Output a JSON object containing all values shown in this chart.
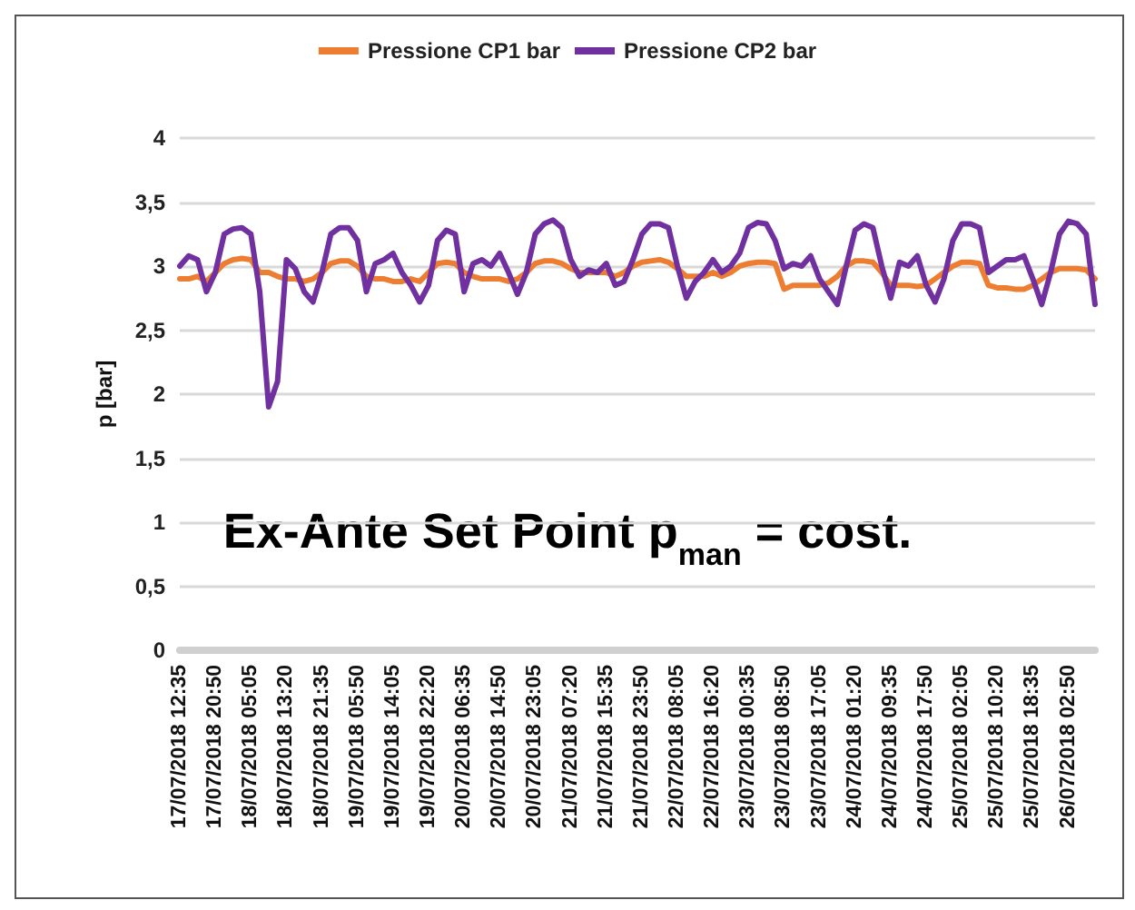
{
  "chart_data": {
    "type": "line",
    "ylabel": "p [bar]",
    "annotations": [
      "Ex-Ante Set Point p$_{man}$ = cost."
    ],
    "categories": [
      "17/07/2018 12:35",
      null,
      null,
      null,
      "17/07/2018 20:50",
      null,
      null,
      null,
      "18/07/2018 05:05",
      null,
      null,
      null,
      "18/07/2018 13:20",
      null,
      null,
      null,
      "18/07/2018 21:35",
      null,
      null,
      null,
      "19/07/2018 05:50",
      null,
      null,
      null,
      "19/07/2018 14:05",
      null,
      null,
      null,
      "19/07/2018 22:20",
      null,
      null,
      null,
      "20/07/2018 06:35",
      null,
      null,
      null,
      "20/07/2018 14:50",
      null,
      null,
      null,
      "20/07/2018 23:05",
      null,
      null,
      null,
      "21/07/2018 07:20",
      null,
      null,
      null,
      "21/07/2018 15:35",
      null,
      null,
      null,
      "21/07/2018 23:50",
      null,
      null,
      null,
      "22/07/2018 08:05",
      null,
      null,
      null,
      "22/07/2018 16:20",
      null,
      null,
      null,
      "23/07/2018 00:35",
      null,
      null,
      null,
      "23/07/2018 08:50",
      null,
      null,
      null,
      "23/07/2018 17:05",
      null,
      null,
      null,
      "24/07/2018 01:20",
      null,
      null,
      null,
      "24/07/2018 09:35",
      null,
      null,
      null,
      "24/07/2018 17:50",
      null,
      null,
      null,
      "25/07/2018 02:05",
      null,
      null,
      null,
      "25/07/2018 10:20",
      null,
      null,
      null,
      "25/07/2018 18:35",
      null,
      null,
      null,
      "26/07/2018 02:50",
      null,
      null,
      null
    ],
    "series": [
      {
        "name": "Pressione CP1 bar",
        "color": "#ed7d31",
        "values": [
          2.9,
          2.9,
          2.92,
          2.88,
          2.95,
          3.02,
          3.05,
          3.06,
          3.05,
          2.95,
          2.95,
          2.92,
          2.9,
          2.9,
          2.88,
          2.9,
          2.95,
          3.02,
          3.04,
          3.04,
          3.0,
          2.92,
          2.9,
          2.9,
          2.88,
          2.88,
          2.9,
          2.88,
          2.95,
          3.02,
          3.03,
          3.02,
          2.95,
          2.92,
          2.9,
          2.9,
          2.9,
          2.88,
          2.9,
          2.95,
          3.02,
          3.04,
          3.04,
          3.02,
          2.98,
          2.95,
          2.95,
          2.95,
          2.95,
          2.92,
          2.95,
          3.0,
          3.03,
          3.04,
          3.05,
          3.03,
          2.98,
          2.92,
          2.92,
          2.92,
          2.95,
          2.92,
          2.95,
          3.0,
          3.02,
          3.03,
          3.03,
          3.02,
          2.82,
          2.85,
          2.85,
          2.85,
          2.85,
          2.87,
          2.92,
          3.0,
          3.04,
          3.04,
          3.03,
          2.95,
          2.85,
          2.85,
          2.85,
          2.84,
          2.85,
          2.9,
          2.95,
          3.0,
          3.03,
          3.03,
          3.02,
          2.85,
          2.83,
          2.83,
          2.82,
          2.82,
          2.85,
          2.9,
          2.95,
          2.98,
          2.98,
          2.98,
          2.97,
          2.9
        ]
      },
      {
        "name": "Pressione CP2 bar",
        "color": "#7030a0",
        "values": [
          3.0,
          3.08,
          3.05,
          2.8,
          2.95,
          3.25,
          3.29,
          3.3,
          3.25,
          2.8,
          1.9,
          2.1,
          3.05,
          2.98,
          2.8,
          2.72,
          2.95,
          3.25,
          3.3,
          3.3,
          3.2,
          2.8,
          3.02,
          3.05,
          3.1,
          2.95,
          2.85,
          2.72,
          2.85,
          3.2,
          3.28,
          3.25,
          2.8,
          3.02,
          3.05,
          3.0,
          3.1,
          2.95,
          2.78,
          2.95,
          3.25,
          3.33,
          3.36,
          3.3,
          3.05,
          2.92,
          2.97,
          2.95,
          3.02,
          2.85,
          2.88,
          3.05,
          3.25,
          3.33,
          3.33,
          3.3,
          3.0,
          2.75,
          2.88,
          2.95,
          3.05,
          2.95,
          3.0,
          3.1,
          3.3,
          3.34,
          3.33,
          3.2,
          2.98,
          3.02,
          3.0,
          3.08,
          2.9,
          2.8,
          2.7,
          3.0,
          3.28,
          3.33,
          3.3,
          3.0,
          2.75,
          3.03,
          3.0,
          3.08,
          2.85,
          2.72,
          2.9,
          3.2,
          3.33,
          3.33,
          3.3,
          2.95,
          3.0,
          3.05,
          3.05,
          3.08,
          2.9,
          2.7,
          2.95,
          3.25,
          3.35,
          3.33,
          3.25,
          2.7
        ]
      }
    ],
    "ylim": [
      0,
      4
    ],
    "yticks": [
      0,
      {
        "value": 0.5,
        "label": "0,5"
      },
      1,
      {
        "value": 1.5,
        "label": "1,5"
      },
      2,
      {
        "value": 2.5,
        "label": "2,5"
      },
      3,
      {
        "value": 3.5,
        "label": "3,5"
      },
      4
    ],
    "grid": "y",
    "legend": "top",
    "marker": "none",
    "line_style": "solid"
  }
}
